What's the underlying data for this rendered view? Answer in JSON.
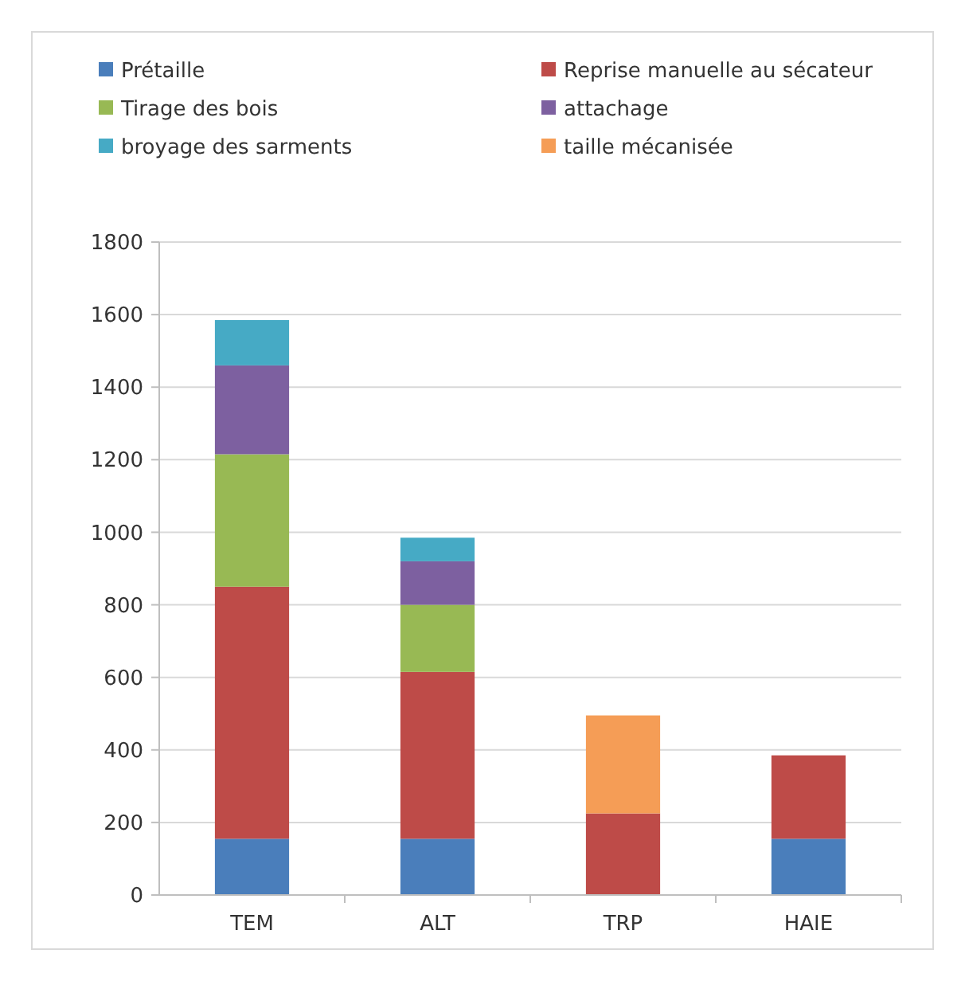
{
  "chart_data": {
    "type": "bar",
    "stacked": true,
    "categories": [
      "TEM",
      "ALT",
      "TRP",
      "HAIE"
    ],
    "series": [
      {
        "name": "Prétaille",
        "color": "#4a7ebb",
        "values": [
          155,
          155,
          null,
          155
        ]
      },
      {
        "name": "Reprise manuelle au sécateur",
        "color": "#be4b48",
        "values": [
          695,
          460,
          225,
          230
        ]
      },
      {
        "name": "Tirage des bois",
        "color": "#98b954",
        "values": [
          365,
          185,
          null,
          null
        ]
      },
      {
        "name": "attachage",
        "color": "#7d60a0",
        "values": [
          245,
          120,
          null,
          null
        ]
      },
      {
        "name": "broyage des sarments",
        "color": "#46aac5",
        "values": [
          125,
          65,
          null,
          null
        ]
      },
      {
        "name": "taille mécanisée",
        "color": "#f59d56",
        "values": [
          null,
          null,
          270,
          null
        ]
      }
    ],
    "ylim": [
      0,
      1800
    ],
    "yticks": [
      0,
      200,
      400,
      600,
      800,
      1000,
      1200,
      1400,
      1600,
      1800
    ],
    "grid": "y",
    "legend": "top"
  }
}
